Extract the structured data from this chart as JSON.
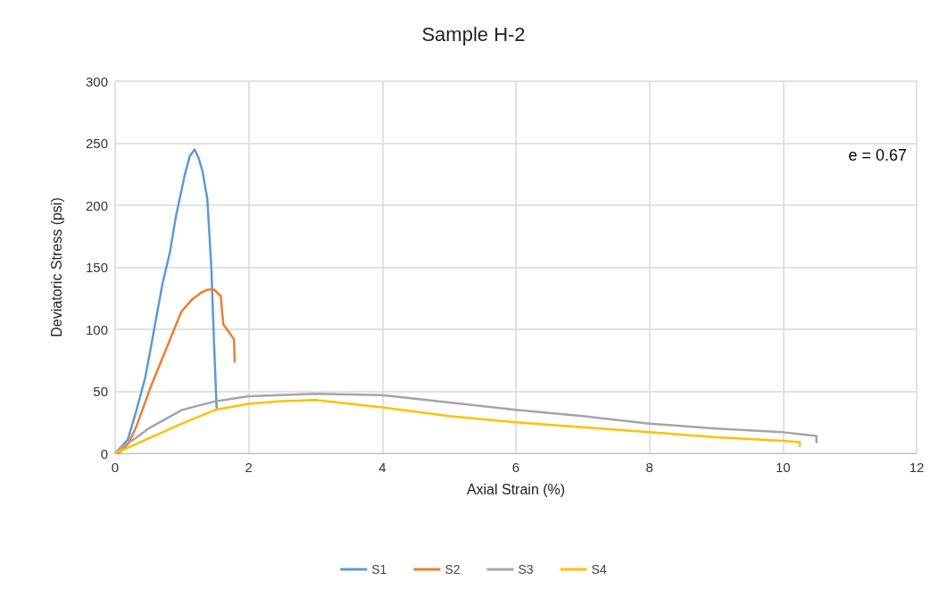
{
  "chart_data": {
    "type": "line",
    "title": "Sample H-2",
    "xlabel": "Axial Strain (%)",
    "ylabel": "Deviatoric Stress (psi)",
    "xlim": [
      0,
      12
    ],
    "xticks": [
      0,
      2,
      4,
      6,
      8,
      10,
      12
    ],
    "ylim": [
      0,
      300
    ],
    "yticks": [
      0,
      50,
      100,
      150,
      200,
      250,
      300
    ],
    "grid": true,
    "legend": "bottom",
    "marker": "none",
    "line_style": "solid",
    "annotations": [
      "e = 0.67"
    ],
    "series": [
      {
        "name": "S1",
        "color": "#5b9bd5",
        "x": [
          0,
          0.19,
          0.32,
          0.45,
          0.55,
          0.71,
          0.82,
          0.91,
          1.04,
          1.12,
          1.19,
          1.25,
          1.31,
          1.38,
          1.44,
          1.48,
          1.52
        ],
        "values": [
          0,
          11,
          35,
          61,
          90,
          137,
          162,
          191,
          224,
          240,
          245,
          238,
          227,
          205,
          150,
          90,
          36
        ]
      },
      {
        "name": "S2",
        "color": "#ed7d31",
        "x": [
          0.05,
          0.2,
          0.32,
          0.55,
          0.84,
          0.99,
          1.15,
          1.3,
          1.39,
          1.48,
          1.58,
          1.62,
          1.7,
          1.78,
          1.79
        ],
        "values": [
          0,
          8,
          22,
          56,
          94,
          114,
          124,
          130,
          132,
          132,
          127,
          104,
          98,
          92,
          74
        ]
      },
      {
        "name": "S3",
        "color": "#a5a5a5",
        "x": [
          0,
          0.1,
          0.3,
          0.5,
          1,
          1.5,
          2,
          3,
          4,
          5,
          6,
          7,
          8,
          9,
          10,
          10.5,
          10.5
        ],
        "values": [
          0,
          5,
          12,
          20,
          35,
          42,
          46,
          48,
          47,
          41,
          35,
          30,
          24,
          20,
          17,
          14,
          9
        ]
      },
      {
        "name": "S4",
        "color": "#ffc000",
        "x": [
          0,
          0.5,
          1,
          1.5,
          2,
          2.5,
          3,
          4,
          5,
          6,
          7,
          8,
          9,
          10,
          10.25,
          10.25
        ],
        "values": [
          0,
          12,
          24,
          35,
          40,
          42,
          43,
          37,
          30,
          25,
          21,
          17,
          13,
          10,
          9,
          6
        ]
      }
    ]
  }
}
